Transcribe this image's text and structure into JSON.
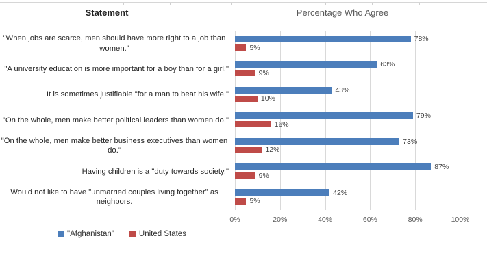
{
  "header": {
    "statement_title": "Statement",
    "chart_title": "Percentage Who Agree"
  },
  "colors": {
    "afghanistan_blue": "#4C7EBB",
    "united_states_red": "#BF4B48",
    "gridline": "#D9D9D9",
    "axis_text": "#595959",
    "label_text": "#262626"
  },
  "chart_data": {
    "type": "bar",
    "orientation": "horizontal",
    "title": "Percentage Who Agree",
    "xlabel": "",
    "ylabel": "Statement",
    "xlim": [
      0,
      100
    ],
    "grid": true,
    "legend_position": "bottom-left",
    "x_ticks": [
      0,
      20,
      40,
      60,
      80,
      100
    ],
    "x_tick_labels": [
      "0%",
      "20%",
      "40%",
      "60%",
      "80%",
      "100%"
    ],
    "categories": [
      "\"When jobs are scarce, men should have more right to a job than women.\"",
      "\"A university education is more important for a boy than for a girl.\"",
      "It is sometimes justifiable \"for a man to beat his wife.\"",
      "\"On the whole, men make better political leaders than women do.\"",
      "\"On the whole, men make better business executives than women do.\"",
      "Having children is a \"duty towards society.\"",
      "Would not like to have \"unmarried couples living together\" as neighbors."
    ],
    "series": [
      {
        "name": "\"Afghanistan\"",
        "color": "#4C7EBB",
        "values": [
          78,
          63,
          43,
          79,
          73,
          87,
          42
        ],
        "labels": [
          "78%",
          "63%",
          "43%",
          "79%",
          "73%",
          "87%",
          "42%"
        ]
      },
      {
        "name": "United States",
        "color": "#BF4B48",
        "values": [
          5,
          9,
          10,
          16,
          12,
          9,
          5
        ],
        "labels": [
          "5%",
          "9%",
          "10%",
          "16%",
          "12%",
          "9%",
          "5%"
        ]
      }
    ]
  }
}
